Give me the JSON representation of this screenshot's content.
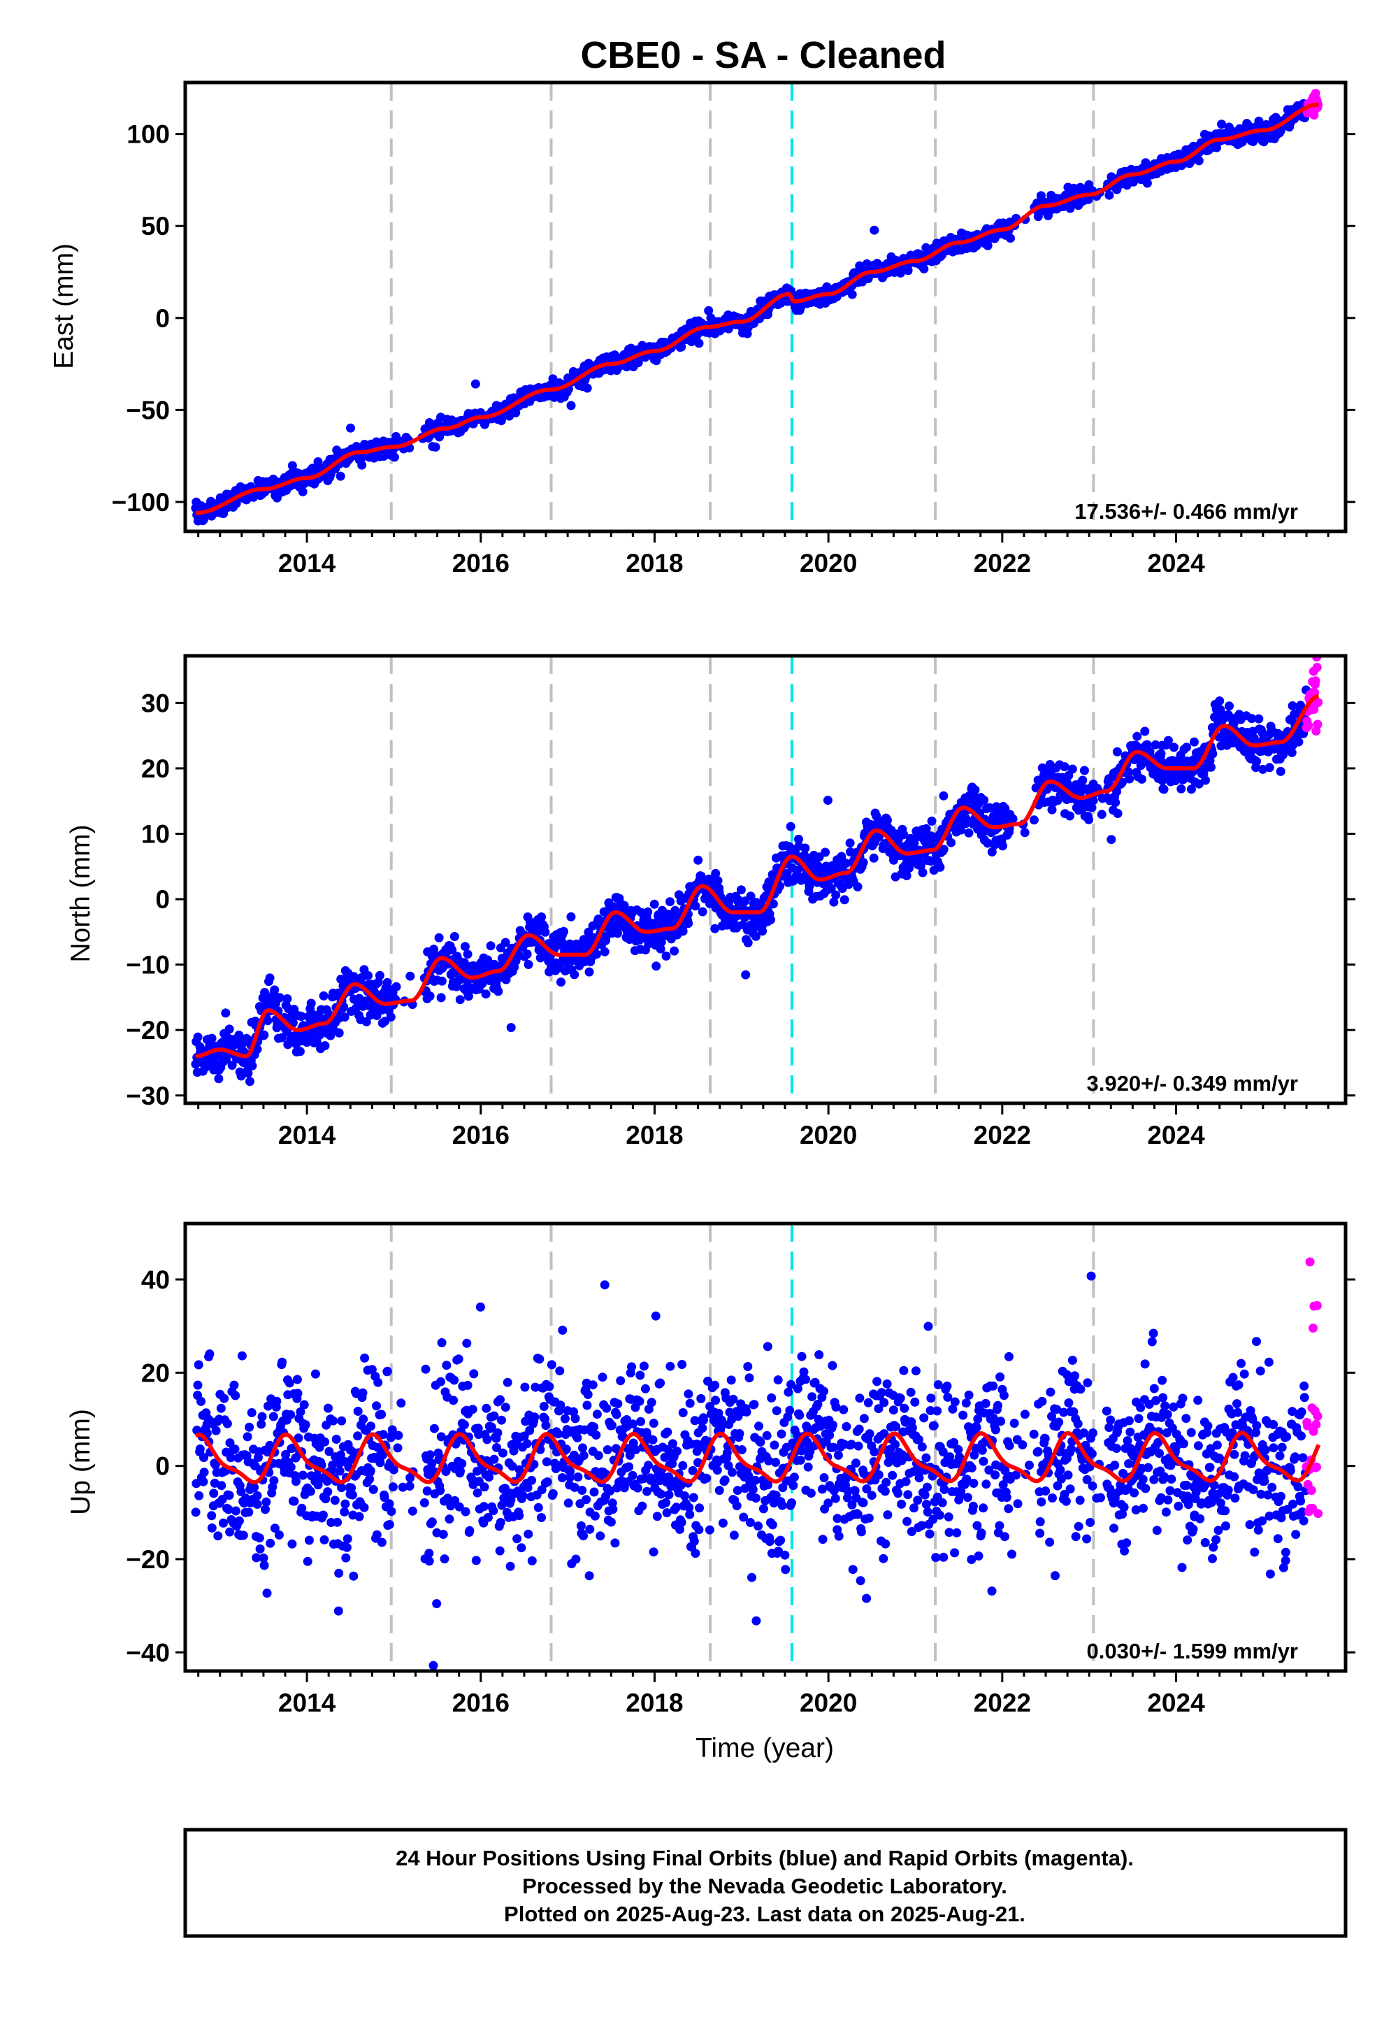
{
  "title": "CBE0  - SA - Cleaned",
  "colors": {
    "final_orbits": "#0000ff",
    "rapid_orbits": "#ff00ff",
    "model": "#ff0000",
    "event_dashed": "#c0c0c0",
    "antenna_change": "#00e5e5"
  },
  "time_axis": {
    "xlabel": "Time (year)",
    "xlim": [
      2012.6,
      2025.95
    ],
    "ticks": [
      2014,
      2016,
      2018,
      2020,
      2022,
      2024
    ],
    "tick_labels": [
      "2014",
      "2016",
      "2018",
      "2020",
      "2022",
      "2024"
    ]
  },
  "vertical_lines": {
    "gray_dashed": [
      2014.97,
      2016.81,
      2018.64,
      2021.23,
      2023.05
    ],
    "cyan_dashed": [
      2019.58
    ]
  },
  "data_span": {
    "start": 2012.72,
    "end_final": 2025.5,
    "rapid_start": 2025.5,
    "end": 2025.64
  },
  "chart_data": [
    {
      "type": "scatter",
      "component": "east",
      "ylabel": "East (mm)",
      "ylim": [
        -116,
        128
      ],
      "yticks": [
        -100,
        -50,
        0,
        50,
        100
      ],
      "ytick_labels": [
        "−100",
        "−50",
        "0",
        "50",
        "100"
      ],
      "rate_label": "17.536+/- 0.466 mm/yr",
      "rate": 17.536,
      "intercept_at_start": -106,
      "offsets": [
        {
          "at": 2019.58,
          "value": -4
        }
      ],
      "seasonal_amplitude": 2.5,
      "noise_sigma": 2.4,
      "series": [
        {
          "name": "Final Orbits (blue)",
          "color": "#0000ff"
        },
        {
          "name": "Rapid Orbits (magenta)",
          "color": "#ff00ff"
        }
      ],
      "model_points": [
        [
          2012.72,
          -106
        ],
        [
          2013.5,
          -93
        ],
        [
          2014.0,
          -87
        ],
        [
          2014.6,
          -73
        ],
        [
          2015.0,
          -70
        ],
        [
          2015.6,
          -60
        ],
        [
          2016.0,
          -54
        ],
        [
          2016.8,
          -39
        ],
        [
          2017.5,
          -25
        ],
        [
          2018.0,
          -18
        ],
        [
          2018.6,
          -5
        ],
        [
          2019.0,
          -2
        ],
        [
          2019.55,
          13
        ],
        [
          2019.6,
          9
        ],
        [
          2020.0,
          13
        ],
        [
          2020.5,
          25
        ],
        [
          2021.0,
          31
        ],
        [
          2021.5,
          41
        ],
        [
          2022.0,
          48
        ],
        [
          2022.5,
          61
        ],
        [
          2023.0,
          67
        ],
        [
          2023.5,
          78
        ],
        [
          2024.0,
          85
        ],
        [
          2024.5,
          97
        ],
        [
          2025.0,
          102
        ],
        [
          2025.64,
          116
        ]
      ]
    },
    {
      "type": "scatter",
      "component": "north",
      "ylabel": "North (mm)",
      "ylim": [
        -31.2,
        37.2
      ],
      "yticks": [
        -30,
        -20,
        -10,
        0,
        10,
        20,
        30
      ],
      "ytick_labels": [
        "−30",
        "−20",
        "−10",
        "0",
        "10",
        "20",
        "30"
      ],
      "rate_label": "3.920+/- 0.349 mm/yr",
      "rate": 3.92,
      "intercept_at_start": -24,
      "offsets": [],
      "seasonal_amplitude": 2.5,
      "noise_sigma": 1.8,
      "series": [
        {
          "name": "Final Orbits (blue)",
          "color": "#0000ff"
        },
        {
          "name": "Rapid Orbits (magenta)",
          "color": "#ff00ff"
        }
      ],
      "model_points": [
        [
          2012.72,
          -24
        ],
        [
          2013.0,
          -23
        ],
        [
          2013.3,
          -24
        ],
        [
          2013.55,
          -17
        ],
        [
          2013.9,
          -20
        ],
        [
          2014.2,
          -19
        ],
        [
          2014.55,
          -13
        ],
        [
          2014.9,
          -16
        ],
        [
          2015.2,
          -15.5
        ],
        [
          2015.55,
          -9
        ],
        [
          2015.9,
          -12
        ],
        [
          2016.2,
          -11
        ],
        [
          2016.55,
          -5.5
        ],
        [
          2016.9,
          -8.5
        ],
        [
          2017.2,
          -8.5
        ],
        [
          2017.55,
          -2
        ],
        [
          2017.9,
          -5
        ],
        [
          2018.2,
          -4.5
        ],
        [
          2018.55,
          2
        ],
        [
          2018.9,
          -2
        ],
        [
          2019.2,
          -2
        ],
        [
          2019.58,
          6.5
        ],
        [
          2019.9,
          3
        ],
        [
          2020.2,
          4
        ],
        [
          2020.55,
          10.5
        ],
        [
          2020.9,
          7
        ],
        [
          2021.2,
          7.5
        ],
        [
          2021.55,
          14
        ],
        [
          2021.9,
          11
        ],
        [
          2022.2,
          11.5
        ],
        [
          2022.55,
          18
        ],
        [
          2022.9,
          15.5
        ],
        [
          2023.2,
          16.5
        ],
        [
          2023.55,
          22.5
        ],
        [
          2023.9,
          20
        ],
        [
          2024.2,
          20
        ],
        [
          2024.55,
          26.5
        ],
        [
          2024.9,
          23.5
        ],
        [
          2025.2,
          24
        ],
        [
          2025.64,
          31
        ]
      ]
    },
    {
      "type": "scatter",
      "component": "up",
      "ylabel": "Up (mm)",
      "ylim": [
        -44,
        52
      ],
      "yticks": [
        -40,
        -20,
        0,
        20,
        40
      ],
      "ytick_labels": [
        "−40",
        "−20",
        "0",
        "20",
        "40"
      ],
      "rate_label": "0.030+/- 1.599 mm/yr",
      "rate": 0.03,
      "intercept_at_start": 1,
      "offsets": [],
      "seasonal_amplitude": 4.5,
      "noise_sigma": 9,
      "series": [
        {
          "name": "Final Orbits (blue)",
          "color": "#0000ff"
        },
        {
          "name": "Rapid Orbits (magenta)",
          "color": "#ff00ff"
        }
      ],
      "model_points": []
    }
  ],
  "footer": {
    "line1": "24 Hour Positions Using Final Orbits (blue) and Rapid Orbits (magenta).",
    "line2": "Processed by the Nevada Geodetic Laboratory.",
    "line3": "Plotted on 2025-Aug-23. Last data on 2025-Aug-21."
  }
}
